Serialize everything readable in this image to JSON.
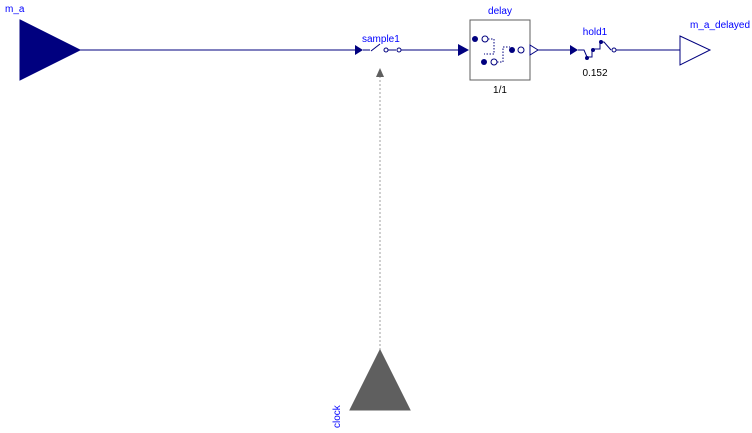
{
  "colors": {
    "signal": "#00007f",
    "clock": "#5f5f5f",
    "text_blue": "#0000ff",
    "text_black": "#000000"
  },
  "blocks": {
    "input": {
      "label": "m_a"
    },
    "sample": {
      "label": "sample1"
    },
    "delay": {
      "label": "delay",
      "ratio": "1/1"
    },
    "hold": {
      "label": "hold1",
      "value": "0.152"
    },
    "output": {
      "label": "m_a_delayed"
    },
    "clock": {
      "label": "clock"
    }
  }
}
